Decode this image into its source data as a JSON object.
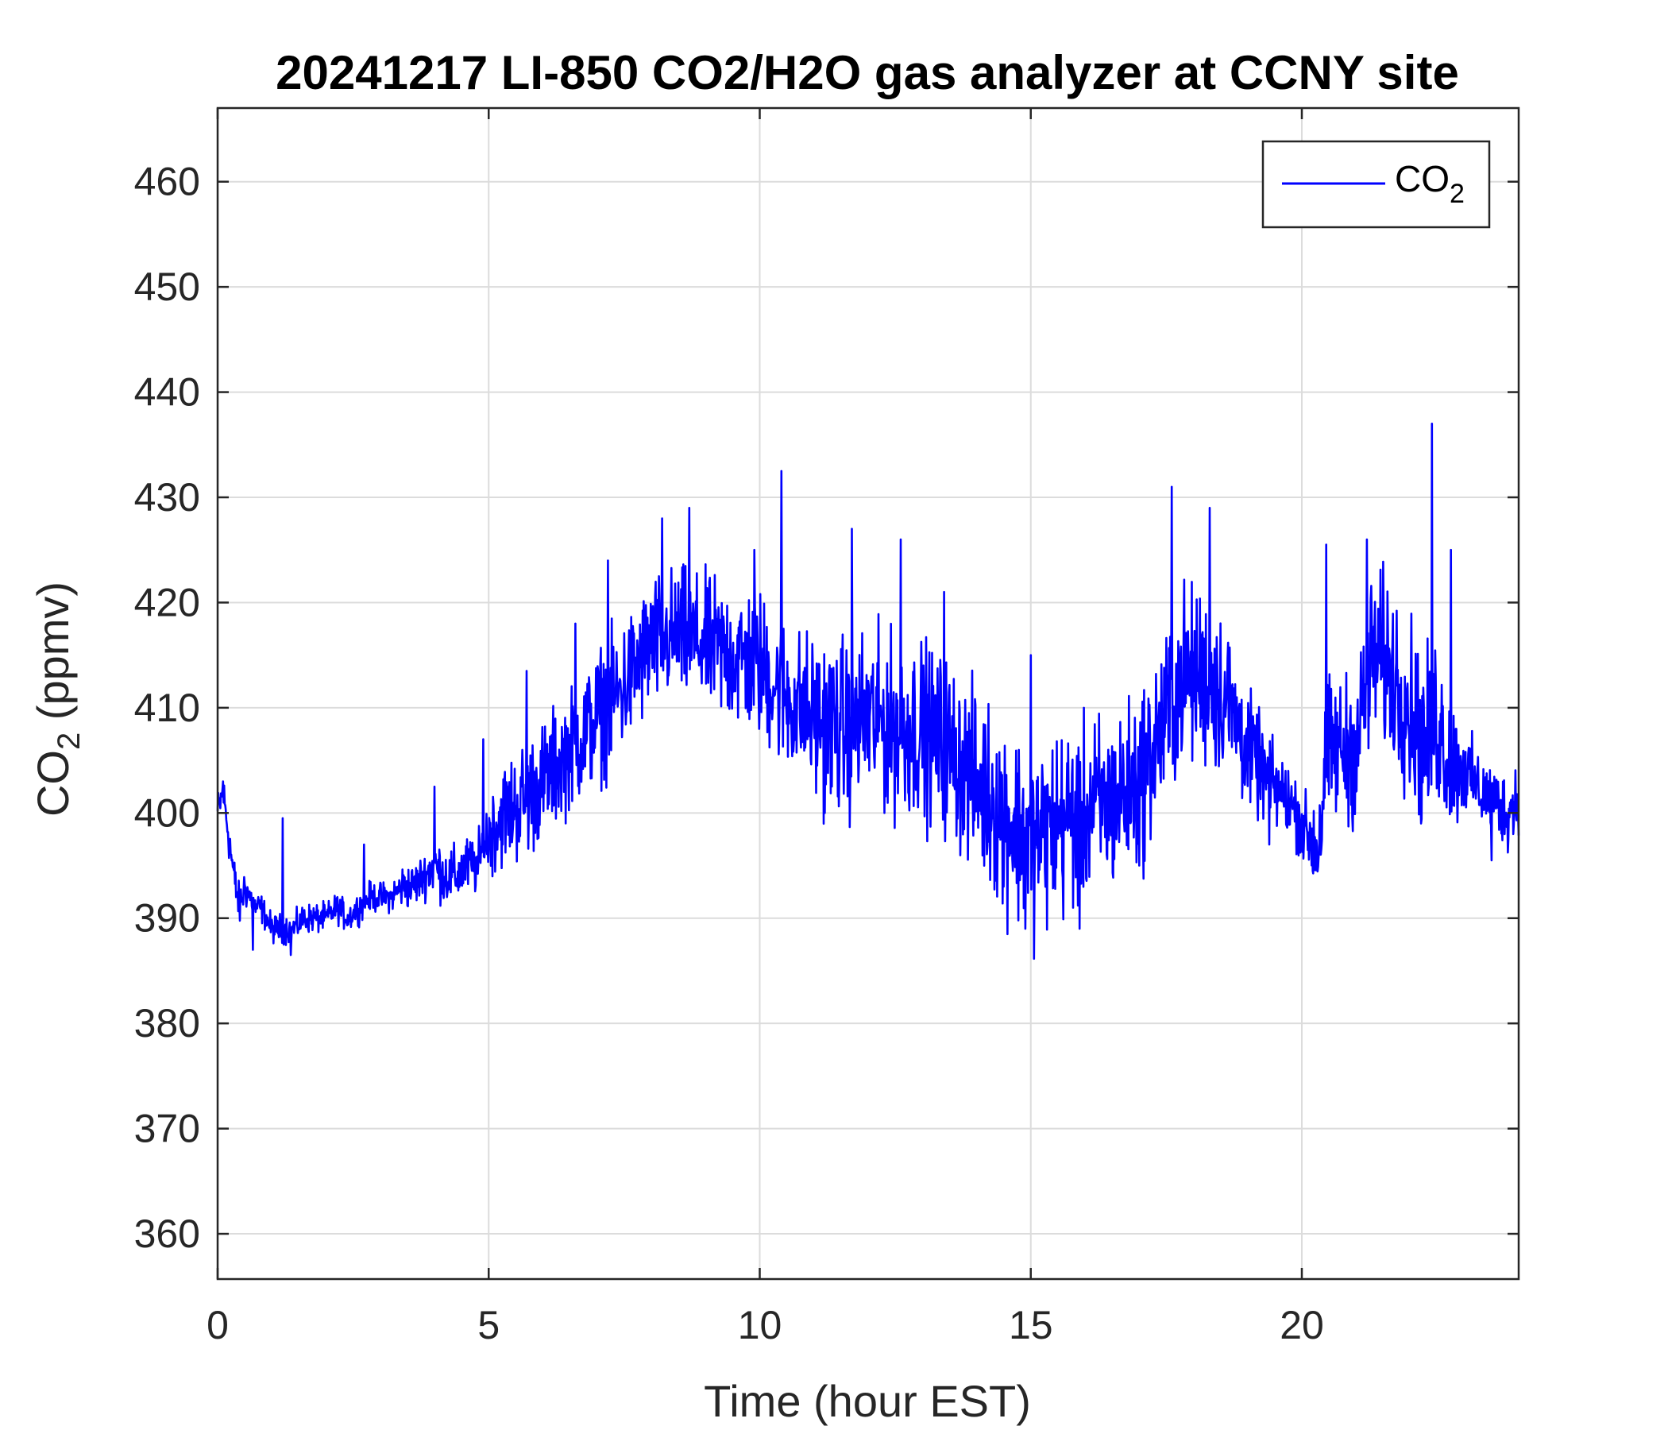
{
  "chart_data": {
    "type": "line",
    "title": "20241217 LI-850 CO2/H2O gas analyzer at CCNY site",
    "xlabel": "Time (hour EST)",
    "ylabel": {
      "main": "CO",
      "sub": "2",
      "rest": " (ppmv)"
    },
    "xlim": [
      0,
      24
    ],
    "ylim": [
      355.7,
      467
    ],
    "xticks": [
      0,
      5,
      10,
      15,
      20
    ],
    "yticks": [
      360,
      370,
      380,
      390,
      400,
      410,
      420,
      430,
      440,
      450,
      460
    ],
    "grid": true,
    "legend": {
      "placement": "top-right",
      "label_main": "CO",
      "label_sub": "2"
    },
    "series": [
      {
        "name": "CO2",
        "color": "#0000ff",
        "x": [
          0,
          0.1,
          0.2,
          0.3,
          0.4,
          0.5,
          0.6,
          0.7,
          0.8,
          0.9,
          1.0,
          1.2,
          1.4,
          1.6,
          1.8,
          2.0,
          2.2,
          2.4,
          2.6,
          2.8,
          3.0,
          3.2,
          3.4,
          3.6,
          3.8,
          4.0,
          4.2,
          4.4,
          4.6,
          4.8,
          5.0,
          5.3,
          5.6,
          6.0,
          6.5,
          7.0,
          7.5,
          8.0,
          8.5,
          9.0,
          9.5,
          10.0,
          10.5,
          11.0,
          11.5,
          12.0,
          12.5,
          13.0,
          13.5,
          14.0,
          14.5,
          15.0,
          15.5,
          16.0,
          16.5,
          17.0,
          17.5,
          17.8,
          18.2,
          18.6,
          19.0,
          19.4,
          19.8,
          20.1,
          20.3,
          20.5,
          20.8,
          21.0,
          21.3,
          21.6,
          22.0,
          22.3,
          22.5,
          22.7,
          23.0,
          23.3,
          23.6,
          23.8,
          24.0
        ],
        "y": [
          400,
          402,
          398,
          394,
          391,
          393,
          392,
          391,
          391,
          390,
          389,
          389,
          389,
          390,
          390,
          390,
          391,
          390,
          391,
          392,
          392,
          392,
          393,
          393,
          394,
          395,
          394,
          394,
          395,
          395,
          398,
          400,
          401,
          403,
          406,
          409,
          412,
          416,
          417,
          416,
          415,
          414,
          411,
          409,
          408,
          409,
          408,
          408,
          406,
          403,
          400,
          397,
          399,
          400,
          401,
          403,
          409,
          413,
          413,
          411,
          406,
          403,
          401,
          398,
          397,
          406,
          406,
          406,
          415,
          414,
          410,
          406,
          409,
          405,
          404,
          402,
          401,
          400,
          402
        ],
        "peaks": [
          {
            "x": 0.1,
            "y": 403
          },
          {
            "x": 0.65,
            "y": 387
          },
          {
            "x": 1.2,
            "y": 399.5
          },
          {
            "x": 1.35,
            "y": 386.5
          },
          {
            "x": 2.7,
            "y": 397
          },
          {
            "x": 4.0,
            "y": 402.5
          },
          {
            "x": 4.9,
            "y": 407
          },
          {
            "x": 5.7,
            "y": 413.5
          },
          {
            "x": 6.6,
            "y": 418
          },
          {
            "x": 7.2,
            "y": 424
          },
          {
            "x": 8.2,
            "y": 428
          },
          {
            "x": 8.7,
            "y": 429
          },
          {
            "x": 9.9,
            "y": 425
          },
          {
            "x": 10.4,
            "y": 432.5
          },
          {
            "x": 11.2,
            "y": 400
          },
          {
            "x": 11.7,
            "y": 427
          },
          {
            "x": 12.6,
            "y": 426
          },
          {
            "x": 13.4,
            "y": 421
          },
          {
            "x": 14.5,
            "y": 393
          },
          {
            "x": 14.9,
            "y": 389
          },
          {
            "x": 15.0,
            "y": 415
          },
          {
            "x": 15.9,
            "y": 389
          },
          {
            "x": 17.0,
            "y": 395
          },
          {
            "x": 17.6,
            "y": 431
          },
          {
            "x": 18.3,
            "y": 429
          },
          {
            "x": 19.4,
            "y": 397
          },
          {
            "x": 20.2,
            "y": 394.5
          },
          {
            "x": 20.45,
            "y": 425.5
          },
          {
            "x": 21.2,
            "y": 426
          },
          {
            "x": 22.2,
            "y": 399
          },
          {
            "x": 22.4,
            "y": 437
          },
          {
            "x": 22.75,
            "y": 425
          },
          {
            "x": 23.5,
            "y": 395.5
          },
          {
            "x": 23.9,
            "y": 398
          }
        ],
        "noise_amp": [
          1.5,
          1.5,
          1.5,
          1.5,
          1.5,
          1.5,
          1.0,
          1.0,
          1.0,
          1.0,
          1.0,
          1.0,
          1.0,
          1.0,
          1.0,
          1.0,
          1.0,
          1.0,
          1.0,
          1.0,
          1.0,
          1.0,
          1.5,
          1.5,
          1.5,
          2.0,
          2.0,
          2.0,
          2.0,
          2.0,
          3.0,
          3.5,
          4.0,
          4.0,
          4.0,
          4.5,
          4.5,
          4.5,
          4.5,
          4.5,
          5.0,
          5.0,
          5.0,
          5.5,
          6.0,
          6.0,
          6.0,
          6.0,
          6.0,
          6.0,
          6.5,
          6.5,
          6.5,
          6.5,
          6.0,
          6.0,
          6.0,
          6.0,
          6.0,
          5.5,
          4.0,
          3.0,
          2.5,
          2.5,
          5.0,
          5.0,
          5.0,
          5.0,
          6.0,
          6.0,
          6.0,
          6.0,
          6.0,
          5.0,
          3.0,
          2.5,
          2.5,
          2.5,
          2.5
        ]
      }
    ]
  }
}
